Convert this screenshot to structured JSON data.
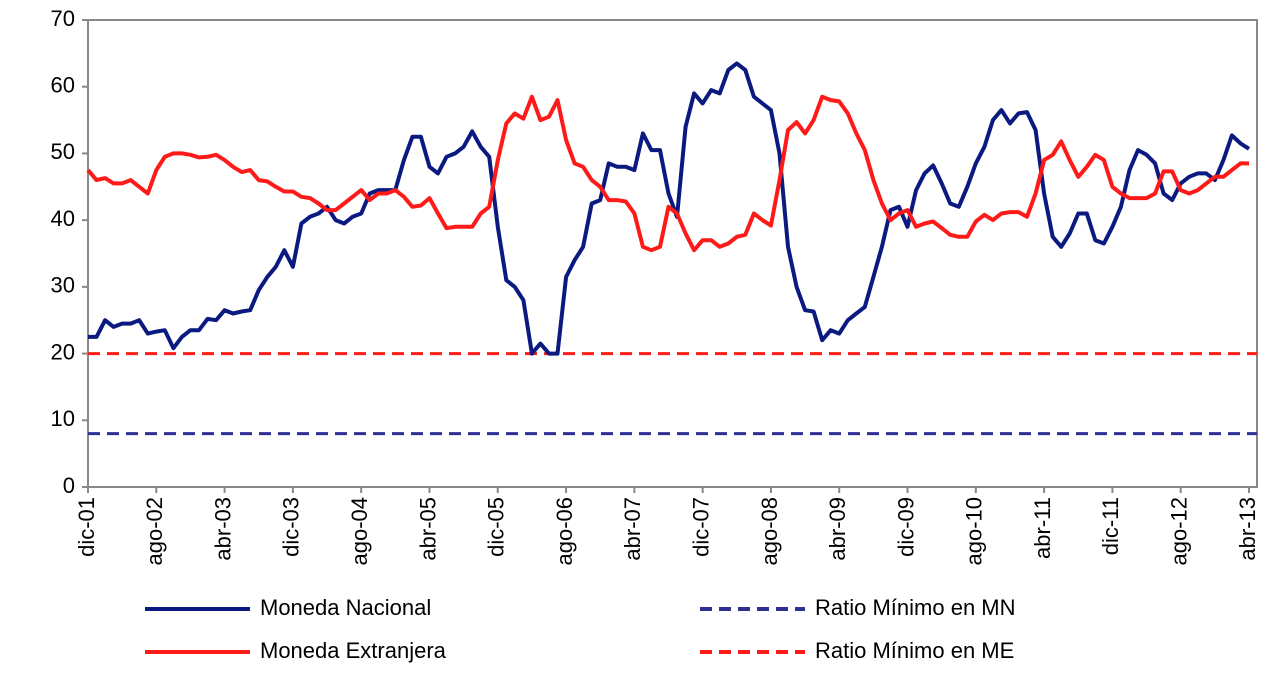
{
  "chart_data": {
    "type": "line",
    "categories": [
      "dic-01",
      null,
      null,
      null,
      null,
      null,
      null,
      null,
      "ago-02",
      null,
      null,
      null,
      null,
      null,
      null,
      null,
      "abr-03",
      null,
      null,
      null,
      null,
      null,
      null,
      null,
      "dic-03",
      null,
      null,
      null,
      null,
      null,
      null,
      null,
      "ago-04",
      null,
      null,
      null,
      null,
      null,
      null,
      null,
      "abr-05",
      null,
      null,
      null,
      null,
      null,
      null,
      null,
      "dic-05",
      null,
      null,
      null,
      null,
      null,
      null,
      null,
      "ago-06",
      null,
      null,
      null,
      null,
      null,
      null,
      null,
      "abr-07",
      null,
      null,
      null,
      null,
      null,
      null,
      null,
      "dic-07",
      null,
      null,
      null,
      null,
      null,
      null,
      null,
      "ago-08",
      null,
      null,
      null,
      null,
      null,
      null,
      null,
      "abr-09",
      null,
      null,
      null,
      null,
      null,
      null,
      null,
      "dic-09",
      null,
      null,
      null,
      null,
      null,
      null,
      null,
      "ago-10",
      null,
      null,
      null,
      null,
      null,
      null,
      null,
      "abr-11",
      null,
      null,
      null,
      null,
      null,
      null,
      null,
      "dic-11",
      null,
      null,
      null,
      null,
      null,
      null,
      null,
      "ago-12",
      null,
      null,
      null,
      null,
      null,
      null,
      null,
      "abr-13"
    ],
    "series": [
      {
        "name": "Moneda Nacional",
        "color": "#0a1a80",
        "values": [
          22.5,
          22.5,
          25,
          24,
          24.5,
          24.5,
          25,
          23,
          23.3,
          23.5,
          20.8,
          22.5,
          23.5,
          23.5,
          25.2,
          25,
          26.5,
          26,
          26.3,
          26.5,
          29.5,
          31.5,
          33,
          35.5,
          33,
          39.5,
          40.5,
          41,
          42,
          40,
          39.5,
          40.5,
          41,
          44,
          44.5,
          44.5,
          44.5,
          49,
          52.5,
          52.5,
          48,
          47,
          49.5,
          50,
          51,
          53.3,
          51,
          49.5,
          39,
          31,
          30,
          28,
          20,
          21.5,
          20,
          20,
          31.5,
          34,
          36,
          42.5,
          43,
          48.5,
          48,
          48,
          47.5,
          53,
          50.5,
          50.5,
          44,
          40.5,
          54,
          59,
          57.5,
          59.5,
          59,
          62.5,
          63.5,
          62.5,
          58.5,
          57.5,
          56.5,
          50,
          36,
          30,
          26.5,
          26.3,
          22,
          23.5,
          23,
          25,
          26,
          27,
          31.5,
          36,
          41.5,
          42,
          39,
          44.5,
          47,
          48.2,
          45.5,
          42.5,
          42,
          45,
          48.5,
          51,
          55,
          56.5,
          54.5,
          56,
          56.2,
          53.5,
          44,
          37.5,
          36,
          38,
          41,
          41,
          37,
          36.5,
          39,
          42,
          47.5,
          50.5,
          49.8,
          48.5,
          44,
          43,
          45.5,
          46.5,
          47,
          47,
          46,
          49,
          52.7,
          51.5,
          50.7
        ]
      },
      {
        "name": "Moneda Extranjera",
        "color": "#ff1a1a",
        "values": [
          47.5,
          46,
          46.3,
          45.5,
          45.5,
          46,
          45,
          44,
          47.5,
          49.5,
          50,
          50,
          49.8,
          49.4,
          49.5,
          49.8,
          49,
          48,
          47.2,
          47.5,
          46,
          45.8,
          45,
          44.3,
          44.3,
          43.5,
          43.3,
          42.5,
          41.5,
          41.5,
          42.5,
          43.5,
          44.5,
          43,
          44,
          44,
          44.5,
          43.5,
          42,
          42.2,
          43.3,
          41,
          38.8,
          39,
          39,
          39,
          41,
          42,
          49,
          54.5,
          56,
          55.2,
          58.5,
          55,
          55.5,
          58,
          52,
          48.5,
          48,
          46,
          45,
          43,
          43,
          42.8,
          41,
          36,
          35.5,
          36,
          42,
          41,
          38,
          35.5,
          37,
          37,
          36,
          36.5,
          37.5,
          37.8,
          41,
          40,
          39.2,
          46,
          53.5,
          54.7,
          53,
          55,
          58.5,
          58,
          57.8,
          56,
          53,
          50.5,
          46,
          42.5,
          40,
          41,
          41.5,
          39,
          39.5,
          39.8,
          38.8,
          37.8,
          37.5,
          37.5,
          39.8,
          40.8,
          40,
          41,
          41.2,
          41.2,
          40.5,
          44,
          49,
          49.8,
          51.8,
          49,
          46.5,
          48,
          49.8,
          49,
          45,
          44,
          43.3,
          43.3,
          43.3,
          44,
          47.3,
          47.3,
          44.5,
          44,
          44.5,
          45.5,
          46.5,
          46.5,
          47.5,
          48.5,
          48.5
        ]
      }
    ],
    "reference_lines": [
      {
        "name": "Ratio Mínimo en MN",
        "color": "#2e3192",
        "value": 8
      },
      {
        "name": "Ratio Mínimo en ME",
        "color": "#ff1a1a",
        "value": 20
      }
    ],
    "ylim": [
      0,
      70
    ],
    "yticks": [
      0,
      10,
      20,
      30,
      40,
      50,
      60,
      70
    ]
  }
}
